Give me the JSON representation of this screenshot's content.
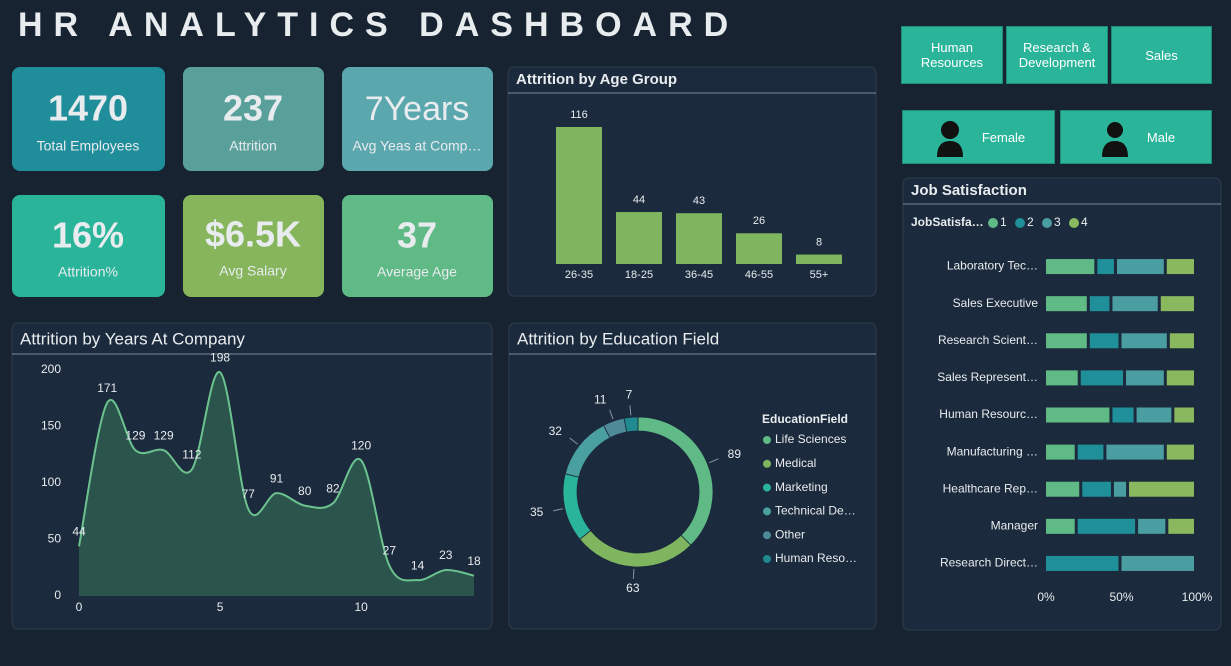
{
  "title": "HR ANALYTICS DASHBOARD",
  "kpis": [
    {
      "value": "1470",
      "label": "Total Employees"
    },
    {
      "value": "237",
      "label": "Attrition"
    },
    {
      "value": "7Years",
      "label": "Avg Yeas at Comp…"
    },
    {
      "value": "16%",
      "label": "Attrition%"
    },
    {
      "value": "$6.5K",
      "label": "Avg Salary"
    },
    {
      "value": "37",
      "label": "Average Age"
    }
  ],
  "filters": [
    "Human Resources",
    "Research & Development",
    "Sales",
    "Female",
    "Male"
  ],
  "chart_data": [
    {
      "type": "bar",
      "title": "Attrition by Age Group",
      "categories": [
        "26-35",
        "18-25",
        "36-45",
        "46-55",
        "55+"
      ],
      "values": [
        116,
        44,
        43,
        26,
        8
      ],
      "color": "#7fb55f"
    },
    {
      "type": "area",
      "title": "Attrition by Years At Company",
      "x": [
        0,
        1,
        2,
        3,
        4,
        5,
        6,
        7,
        8,
        9,
        10,
        11,
        12,
        13,
        14
      ],
      "values": [
        44,
        171,
        129,
        129,
        112,
        198,
        77,
        91,
        80,
        82,
        120,
        27,
        14,
        23,
        18
      ],
      "color": "#6cc28f",
      "xlim": [
        0,
        14
      ],
      "xticks": [
        0,
        5,
        10
      ],
      "ylim": [
        0,
        200
      ],
      "yticks": [
        0,
        50,
        100,
        150,
        200
      ]
    },
    {
      "type": "donut",
      "title": "Attrition by Education Field",
      "legend_title": "EducationField",
      "categories": [
        "Life Sciences",
        "Medical",
        "Marketing",
        "Technical De…",
        "Other",
        "Human Reso…"
      ],
      "values": [
        89,
        63,
        35,
        32,
        11,
        7
      ],
      "colors": [
        "#5fba86",
        "#7fb55f",
        "#2ab59b",
        "#4aa0a0",
        "#4f8a99",
        "#1f8a8f"
      ]
    },
    {
      "type": "stacked_bar_h",
      "title": "Job Satisfaction",
      "legend_title": "JobSatisfa…",
      "categories": [
        "Laboratory Tec…",
        "Sales Executive",
        "Research Scient…",
        "Sales Represent…",
        "Human Resourc…",
        "Manufacturing …",
        "Healthcare Rep…",
        "Manager",
        "Research Direct…"
      ],
      "series": [
        {
          "name": "1",
          "color": "#5fba86",
          "values": [
            34,
            29,
            29,
            23,
            44,
            21,
            24,
            21,
            0
          ]
        },
        {
          "name": "2",
          "color": "#1f8f9a",
          "values": [
            13,
            15,
            21,
            30,
            16,
            19,
            21,
            40,
            50
          ]
        },
        {
          "name": "3",
          "color": "#4a9da0",
          "values": [
            33,
            32,
            32,
            27,
            25,
            40,
            10,
            20,
            50
          ]
        },
        {
          "name": "4",
          "color": "#8ab85f",
          "values": [
            20,
            24,
            18,
            20,
            15,
            20,
            45,
            19,
            0
          ]
        }
      ],
      "xlim": [
        0,
        100
      ],
      "xticks": [
        {
          "value": 0,
          "label": "0%"
        },
        {
          "value": 50,
          "label": "50%"
        },
        {
          "value": 100,
          "label": "100%"
        }
      ]
    }
  ]
}
